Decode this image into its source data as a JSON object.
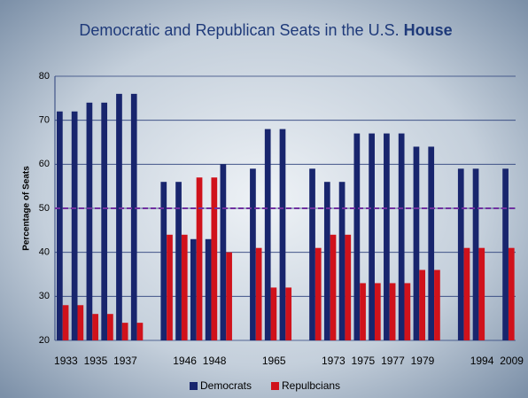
{
  "chart_data": {
    "type": "bar",
    "title": {
      "text": "Democratic and Republican Seats in the U.S.",
      "emphasis": "House"
    },
    "ylabel": "Percentage of Seats",
    "categories": [
      "1933",
      null,
      "1935",
      null,
      "1937",
      null,
      null,
      null,
      "1946",
      null,
      "1948",
      null,
      null,
      null,
      "1965",
      null,
      null,
      null,
      "1973",
      null,
      "1975",
      null,
      "1977",
      null,
      "1979",
      null,
      null,
      null,
      "1994",
      null,
      "2009"
    ],
    "series": [
      {
        "name": "Democrats",
        "color": "#18256d",
        "values": [
          72,
          72,
          74,
          74,
          76,
          76,
          null,
          56,
          56,
          43,
          43,
          60,
          null,
          59,
          68,
          68,
          null,
          59,
          56,
          56,
          67,
          67,
          67,
          67,
          64,
          64,
          null,
          59,
          59,
          null,
          59
        ]
      },
      {
        "name": "Repulbcians",
        "color": "#d0121b",
        "values": [
          28,
          28,
          26,
          26,
          24,
          24,
          null,
          44,
          44,
          57,
          57,
          40,
          null,
          41,
          32,
          32,
          null,
          41,
          44,
          44,
          33,
          33,
          33,
          33,
          36,
          36,
          null,
          41,
          41,
          null,
          41
        ]
      }
    ],
    "ylim": [
      20,
      80
    ],
    "yticks": [
      20,
      30,
      40,
      50,
      60,
      70,
      80
    ],
    "grid": true,
    "reference_line": {
      "value": 50,
      "color": "#7030a0"
    },
    "legend": "bottom"
  }
}
